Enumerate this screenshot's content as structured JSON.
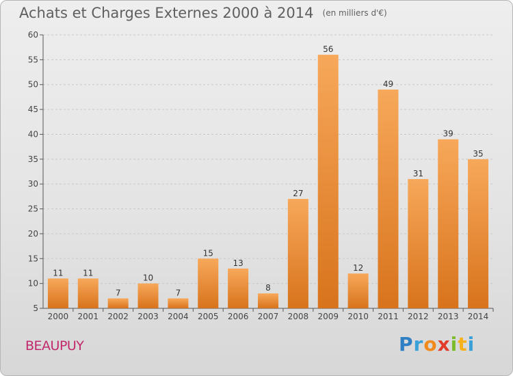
{
  "header": {
    "title": "Achats et Charges Externes 2000 à 2014",
    "subtitle": "(en milliers d'€)"
  },
  "footer": {
    "commune": "BEAUPUY",
    "logo_text": "Proxiti"
  },
  "colors": {
    "bar_light": "#f7a85a",
    "bar_dark": "#d8731c",
    "grid": "#c8c8c8",
    "title": "#5f5f5f",
    "commune": "#c2286b"
  },
  "chart_data": {
    "type": "bar",
    "title": "Achats et Charges Externes 2000 à 2014",
    "subtitle": "(en milliers d'€)",
    "xlabel": "",
    "ylabel": "",
    "ylim": [
      5,
      60
    ],
    "yticks": [
      5,
      10,
      15,
      20,
      25,
      30,
      35,
      40,
      45,
      50,
      55,
      60
    ],
    "grid": true,
    "categories": [
      "2000",
      "2001",
      "2002",
      "2003",
      "2004",
      "2005",
      "2006",
      "2007",
      "2008",
      "2009",
      "2010",
      "2011",
      "2012",
      "2013",
      "2014"
    ],
    "values": [
      11,
      11,
      7,
      10,
      7,
      15,
      13,
      8,
      27,
      56,
      12,
      49,
      31,
      39,
      35
    ]
  }
}
